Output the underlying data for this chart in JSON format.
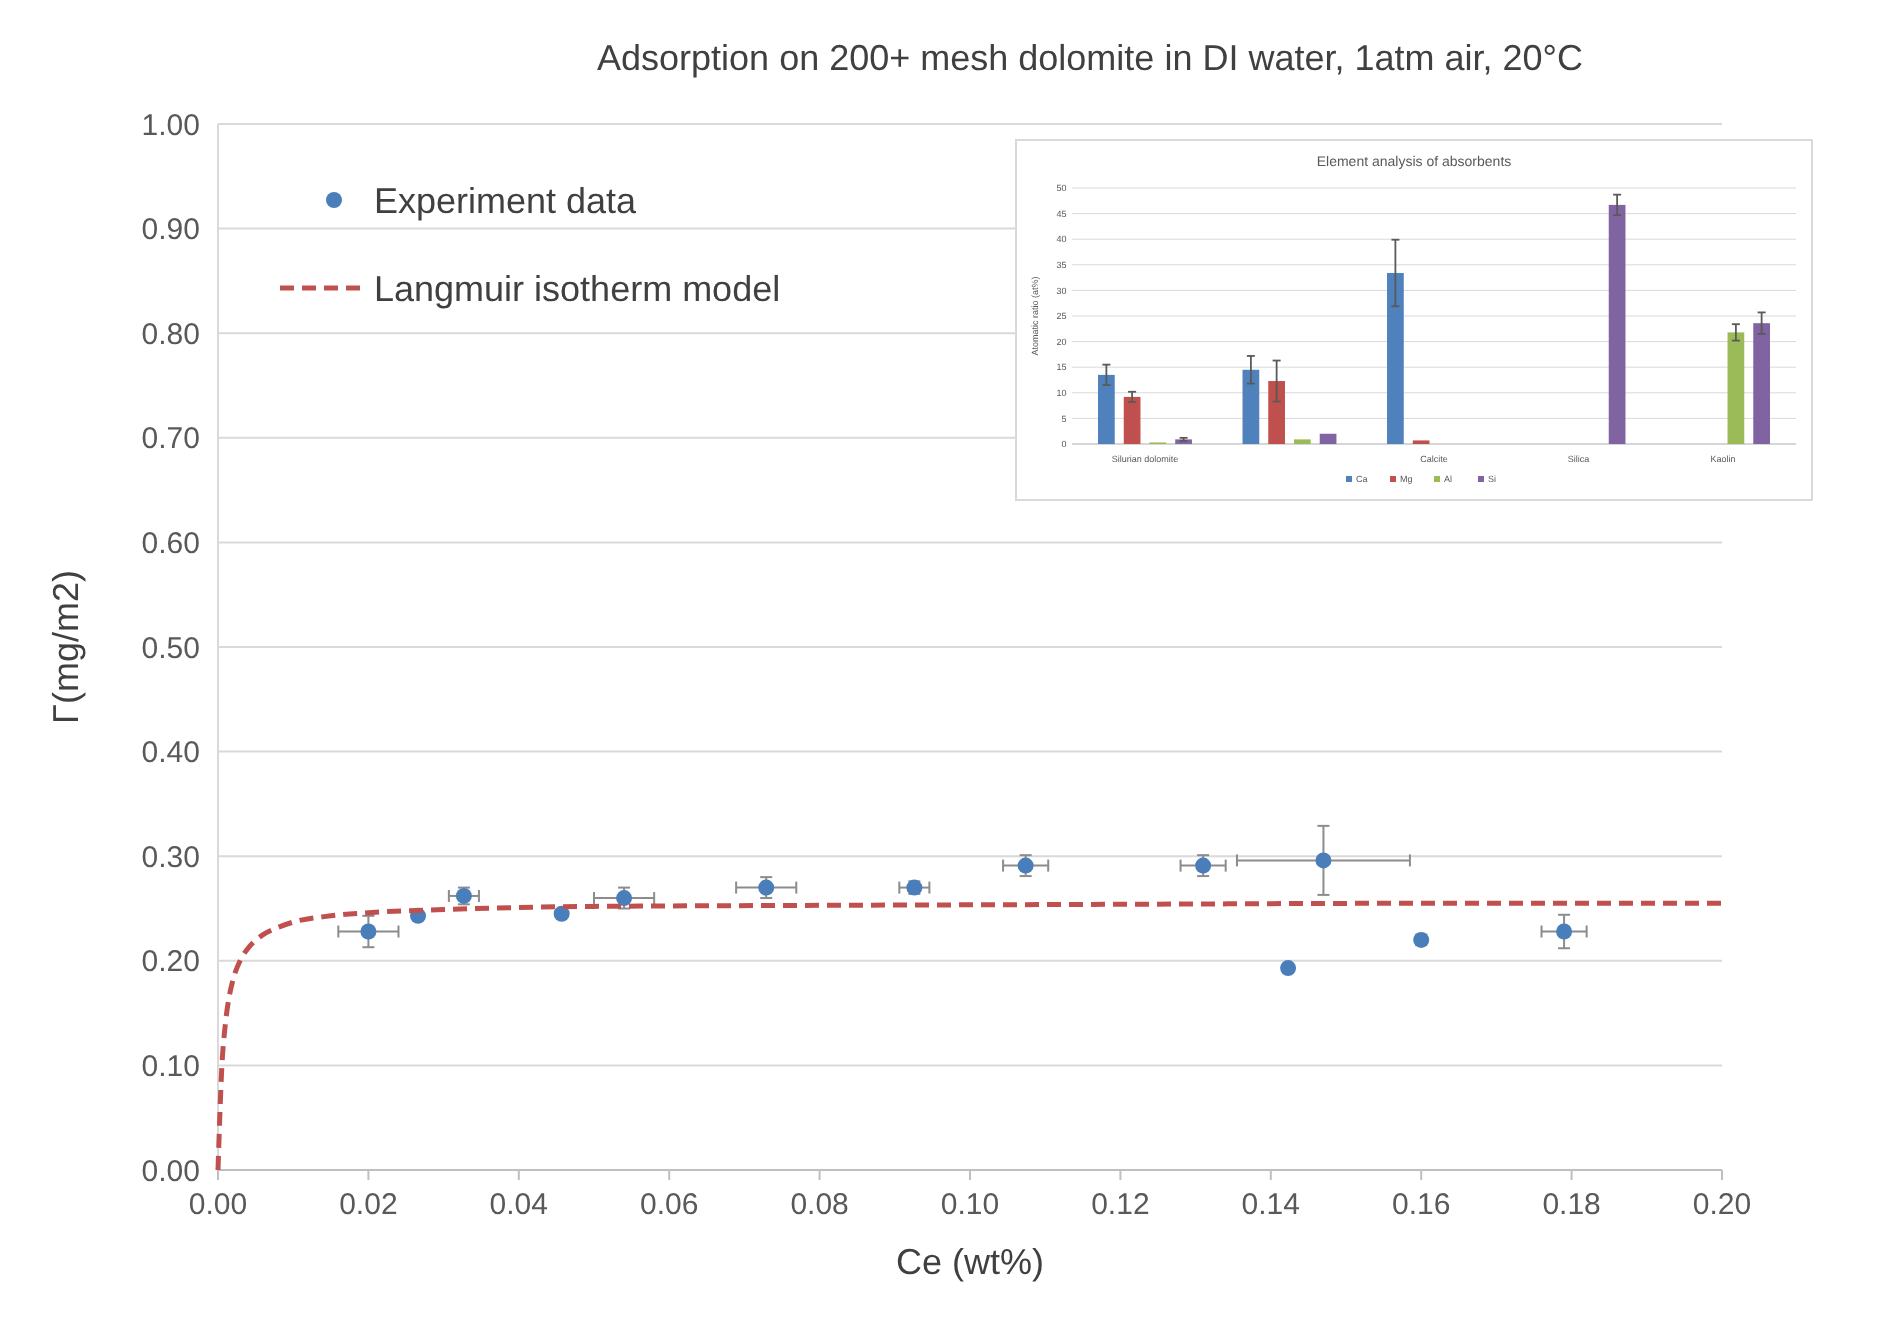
{
  "chart_data": [
    {
      "type": "scatter",
      "title": "Adsorption on 200+ mesh dolomite  in DI water, 1atm air, 20°C",
      "xlabel": "Ce (wt%)",
      "ylabel": "Γ(mg/m2)",
      "xlim": [
        0,
        0.2
      ],
      "ylim": [
        0,
        1
      ],
      "xticks": [
        {
          "value": 0,
          "label": "0.00"
        },
        {
          "value": 0.02,
          "label": "0.02"
        },
        {
          "value": 0.04,
          "label": "0.04"
        },
        {
          "value": 0.06,
          "label": "0.06"
        },
        {
          "value": 0.08,
          "label": "0.08"
        },
        {
          "value": 0.1,
          "label": "0.10"
        },
        {
          "value": 0.12,
          "label": "0.12"
        },
        {
          "value": 0.14,
          "label": "0.14"
        },
        {
          "value": 0.16,
          "label": "0.16"
        },
        {
          "value": 0.18,
          "label": "0.18"
        },
        {
          "value": 0.2,
          "label": "0.20"
        }
      ],
      "yticks": [
        {
          "value": 0,
          "label": "0.00"
        },
        {
          "value": 0.1,
          "label": "0.10"
        },
        {
          "value": 0.2,
          "label": "0.20"
        },
        {
          "value": 0.3,
          "label": "0.30"
        },
        {
          "value": 0.4,
          "label": "0.40"
        },
        {
          "value": 0.5,
          "label": "0.50"
        },
        {
          "value": 0.6,
          "label": "0.60"
        },
        {
          "value": 0.7,
          "label": "0.70"
        },
        {
          "value": 0.8,
          "label": "0.80"
        },
        {
          "value": 0.9,
          "label": "0.90"
        },
        {
          "value": 1,
          "label": "1.00"
        }
      ],
      "grid": "y",
      "legend": "top left",
      "series": [
        {
          "name": "Experiment data",
          "type": "scatter",
          "color": "#4a7ebb",
          "marker": "circle",
          "x": [
            0.02,
            0.0266,
            0.0327,
            0.0457,
            0.054,
            0.0729,
            0.0926,
            0.1074,
            0.131,
            0.1423,
            0.147,
            0.16,
            0.179
          ],
          "values": [
            0.228,
            0.243,
            0.262,
            0.245,
            0.26,
            0.27,
            0.27,
            0.291,
            0.291,
            0.193,
            0.296,
            0.22,
            0.228
          ],
          "errors": [
            0.015,
            null,
            0.008,
            null,
            0.01,
            0.01,
            0.006,
            0.01,
            0.01,
            null,
            0.033,
            0.005,
            0.016
          ],
          "xerrors": [
            0.004,
            null,
            0.002,
            null,
            0.004,
            0.004,
            0.002,
            0.003,
            0.003,
            null,
            0.0115,
            null,
            0.003
          ]
        },
        {
          "name": "Langmuir isotherm model",
          "type": "line",
          "color": "#c0504d",
          "marker": "none",
          "line_style": "dashed",
          "x": [
            0,
            0.0005,
            0.001,
            0.0015,
            0.002,
            0.003,
            0.004,
            0.006,
            0.008,
            0.01,
            0.015,
            0.02,
            0.03,
            0.05,
            0.08,
            0.12,
            0.16,
            0.2
          ],
          "values": [
            0,
            0.097,
            0.141,
            0.166,
            0.182,
            0.201,
            0.212,
            0.225,
            0.232,
            0.237,
            0.243,
            0.246,
            0.249,
            0.252,
            0.253,
            0.254,
            0.255,
            0.255
          ]
        }
      ]
    },
    {
      "type": "bar",
      "title": "Element analysis of absorbents",
      "ylabel": "Atomatic ratio (at%)",
      "categories": [
        "Silurian dolomite",
        null,
        "Calcite",
        "Silica",
        "Kaolin"
      ],
      "ylim": [
        0,
        50
      ],
      "yticks": [
        0,
        5,
        10,
        15,
        20,
        25,
        30,
        35,
        40,
        45,
        50
      ],
      "grid": "y",
      "legend": "bottom",
      "series": [
        {
          "name": "Ca",
          "color": "#4f81bd",
          "values": [
            13.5,
            14.5,
            33.4,
            null,
            null
          ],
          "errors": [
            2,
            2.7,
            6.5,
            null,
            null
          ]
        },
        {
          "name": "Mg",
          "color": "#c0504d",
          "values": [
            9.2,
            12.3,
            0.7,
            null,
            null
          ],
          "errors": [
            1,
            4,
            null,
            null,
            null
          ]
        },
        {
          "name": "Al",
          "color": "#9bbb59",
          "values": [
            0.3,
            0.9,
            null,
            null,
            21.8
          ],
          "errors": [
            null,
            null,
            null,
            null,
            1.6
          ]
        },
        {
          "name": "Si",
          "color": "#8064a2",
          "values": [
            0.9,
            2,
            null,
            46.7,
            23.6
          ],
          "errors": [
            0.3,
            null,
            null,
            2,
            2.1
          ]
        }
      ]
    }
  ]
}
